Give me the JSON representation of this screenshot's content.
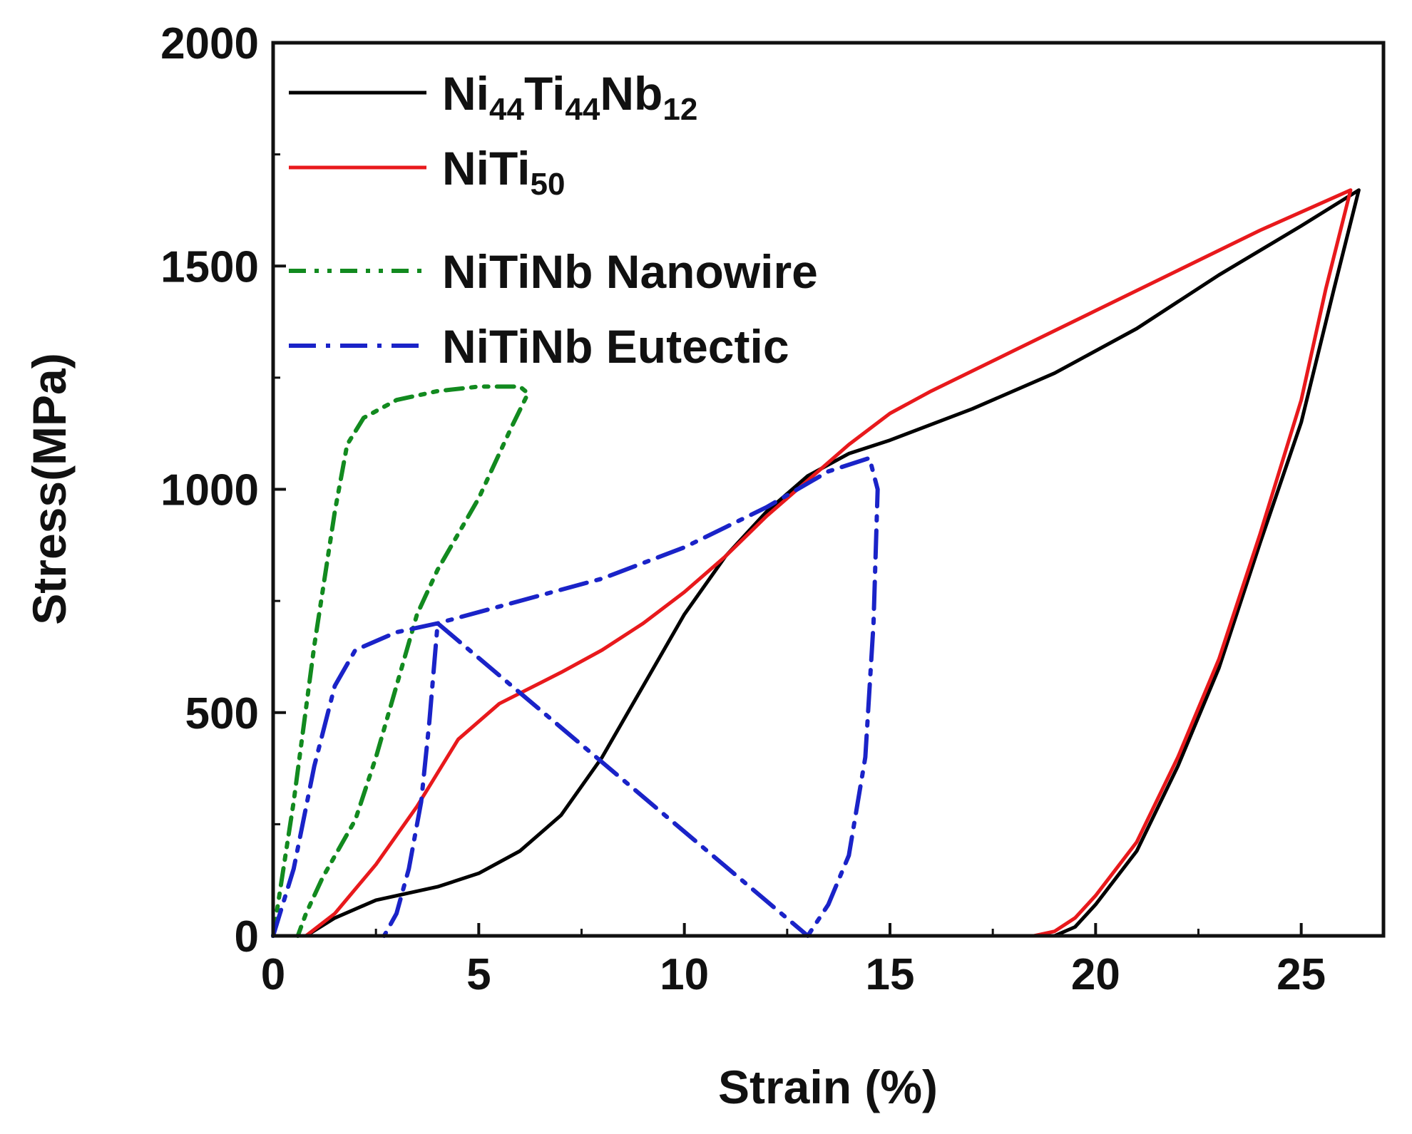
{
  "chart_data": {
    "type": "line",
    "title": "",
    "xlabel": "Strain (%)",
    "ylabel": "Stress(MPa)",
    "xlim": [
      0,
      27
    ],
    "ylim": [
      0,
      2000
    ],
    "xticks": [
      "0",
      "5",
      "10",
      "15",
      "20",
      "25"
    ],
    "yticks": [
      "0",
      "500",
      "1000",
      "1500",
      "2000"
    ],
    "x_tick_values": [
      0,
      5,
      10,
      15,
      20,
      25
    ],
    "y_tick_values": [
      0,
      500,
      1000,
      1500,
      2000
    ],
    "legend_position": "top-left",
    "series": [
      {
        "name": "Ni44Ti44Nb12",
        "label_parts": [
          [
            "Ni",
            ""
          ],
          [
            "44",
            "sub"
          ],
          [
            "Ti",
            ""
          ],
          [
            "44",
            "sub"
          ],
          [
            "Nb",
            ""
          ],
          [
            "12",
            "sub"
          ]
        ],
        "color": "#000000",
        "dash": "solid",
        "x": [
          0.8,
          1.5,
          2.5,
          4.0,
          5.0,
          6.0,
          7.0,
          8.0,
          9.0,
          10.0,
          11.0,
          12.0,
          13.0,
          14.0,
          15.0,
          17.0,
          19.0,
          21.0,
          23.0,
          25.0,
          26.4,
          25.8,
          25.0,
          24.0,
          23.0,
          22.0,
          21.0,
          20.0,
          19.5,
          19.0,
          18.5
        ],
        "y": [
          0,
          40,
          80,
          110,
          140,
          190,
          270,
          400,
          560,
          720,
          850,
          950,
          1030,
          1080,
          1110,
          1180,
          1260,
          1360,
          1480,
          1590,
          1670,
          1450,
          1150,
          880,
          600,
          380,
          190,
          70,
          20,
          0,
          0
        ]
      },
      {
        "name": "NiTi50",
        "label_parts": [
          [
            "NiTi",
            ""
          ],
          [
            "50",
            "sub"
          ]
        ],
        "color": "#e8191c",
        "dash": "solid",
        "x": [
          0.8,
          1.5,
          2.5,
          3.5,
          4.5,
          5.5,
          7.0,
          8.0,
          9.0,
          10.0,
          11.0,
          12.0,
          13.0,
          14.0,
          15.0,
          16.0,
          18.0,
          20.0,
          22.0,
          24.0,
          26.2,
          25.6,
          25.0,
          24.0,
          23.0,
          22.0,
          21.0,
          20.0,
          19.5,
          19.0,
          18.5,
          14.5
        ],
        "y": [
          0,
          50,
          160,
          290,
          440,
          520,
          590,
          640,
          700,
          770,
          850,
          940,
          1020,
          1100,
          1170,
          1220,
          1310,
          1400,
          1490,
          1580,
          1670,
          1450,
          1200,
          900,
          620,
          400,
          210,
          90,
          40,
          10,
          0,
          0
        ]
      },
      {
        "name": "NiTiNb Nanowire",
        "label_parts": [
          [
            "NiTiNb Nanowire",
            ""
          ]
        ],
        "color": "#128a1f",
        "dash": "dashdotdot",
        "x": [
          0.0,
          0.5,
          1.0,
          1.5,
          1.8,
          2.2,
          3.0,
          4.0,
          5.0,
          6.0,
          6.2,
          5.8,
          5.0,
          4.5,
          4.0,
          3.5,
          3.0,
          2.5,
          2.0,
          1.2,
          0.8,
          0.6
        ],
        "y": [
          0,
          300,
          650,
          950,
          1100,
          1160,
          1200,
          1220,
          1230,
          1230,
          1215,
          1140,
          980,
          900,
          820,
          720,
          560,
          400,
          260,
          130,
          50,
          0
        ]
      },
      {
        "name": "NiTiNb Eutectic",
        "label_parts": [
          [
            "NiTiNb Eutectic",
            ""
          ]
        ],
        "color": "#1a23c8",
        "dash": "dashdot",
        "x": [
          0.0,
          0.5,
          1.0,
          1.5,
          2.0,
          3.0,
          4.0,
          6.0,
          8.0,
          10.0,
          12.0,
          13.5,
          14.5,
          14.7,
          14.6,
          14.4,
          14.0,
          13.5,
          13.0,
          4.0,
          3.8,
          3.6,
          3.3,
          3.0,
          2.7
        ],
        "y": [
          0,
          150,
          380,
          560,
          640,
          680,
          700,
          750,
          800,
          870,
          960,
          1040,
          1070,
          1000,
          700,
          400,
          180,
          70,
          0,
          700,
          480,
          300,
          150,
          50,
          0
        ]
      }
    ]
  }
}
